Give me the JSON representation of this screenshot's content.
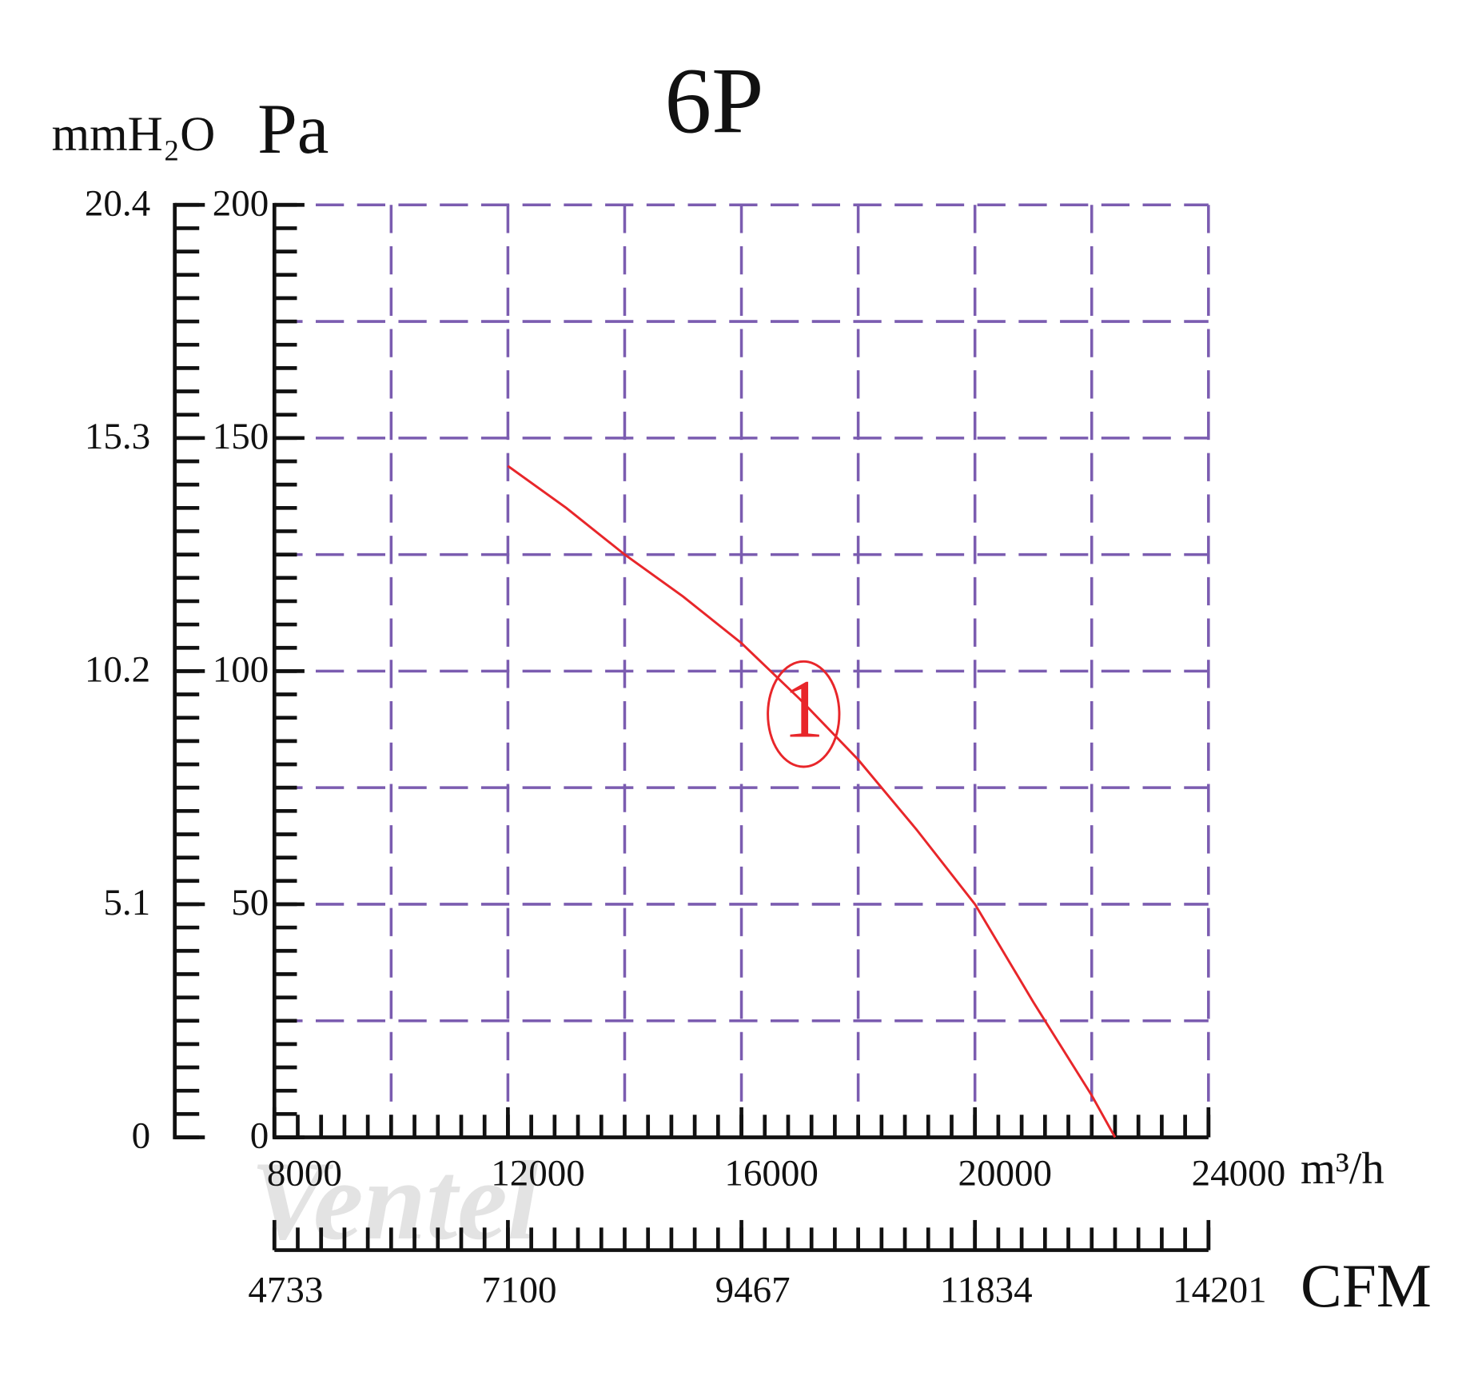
{
  "chart_data": {
    "type": "line",
    "title": "6P",
    "y_label": "Pa",
    "y2_label": "mmH₂O",
    "x_label": "m³/h",
    "x2_label": "CFM",
    "watermark": "Ventel",
    "curve_label": "1",
    "x": [
      12000,
      13000,
      14000,
      15000,
      16000,
      17000,
      18000,
      19000,
      20000,
      21000,
      22000,
      22400
    ],
    "values": [
      144,
      135,
      125,
      116,
      106,
      94,
      81,
      66,
      50,
      29,
      9,
      0
    ],
    "color": "#e8262a",
    "xlim": [
      8000,
      24000
    ],
    "xticks": [
      8000,
      12000,
      16000,
      20000,
      24000
    ],
    "x2lim": [
      4733,
      14201
    ],
    "x2ticks": [
      4733,
      7100,
      9467,
      11834,
      14201
    ],
    "ylim": [
      0,
      200
    ],
    "yticks": [
      0,
      50,
      100,
      150,
      200
    ],
    "y2lim": [
      0,
      20.4
    ],
    "y2ticks": [
      0,
      5.1,
      10.2,
      15.3,
      20.4
    ],
    "xgrid": [
      8000,
      10000,
      12000,
      14000,
      16000,
      18000,
      20000,
      22000,
      24000
    ],
    "ygrid": [
      0,
      25,
      50,
      75,
      100,
      125,
      150,
      175,
      200
    ],
    "grid_color": "#7b5cb0"
  }
}
